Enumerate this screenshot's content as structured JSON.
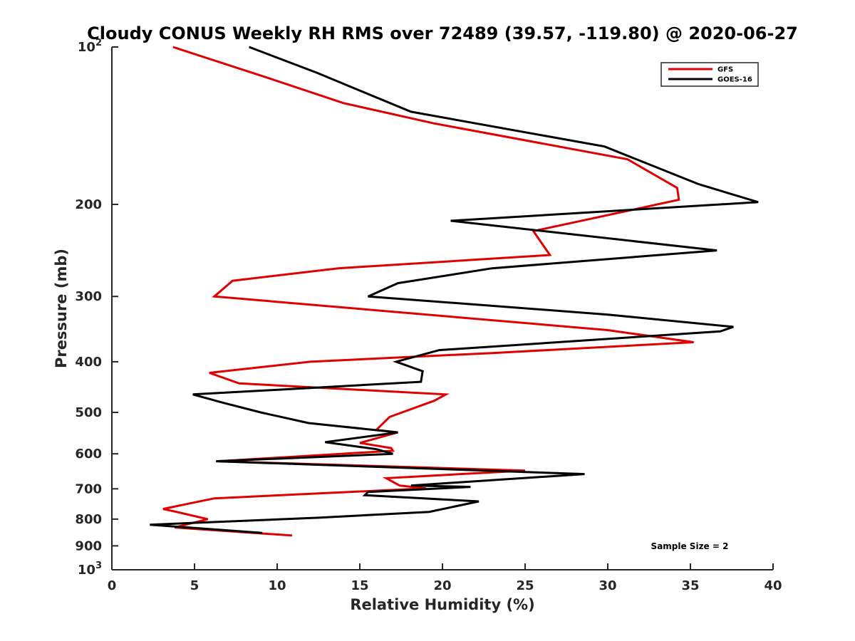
{
  "chart_data": {
    "type": "line",
    "title": "Cloudy CONUS Weekly RH RMS over 72489 (39.57, -119.80) @ 2020-06-27",
    "xlabel": "Relative Humidity (%)",
    "ylabel": "Pressure (mb)",
    "xlim": [
      0,
      40
    ],
    "ylim": [
      100,
      1000
    ],
    "yscale": "log",
    "y_reversed": true,
    "grid": false,
    "legend_position": "top-right",
    "x_ticks": [
      0,
      5,
      10,
      15,
      20,
      25,
      30,
      35,
      40
    ],
    "x_tick_labels": [
      "0",
      "5",
      "10",
      "15",
      "20",
      "25",
      "30",
      "35",
      "40"
    ],
    "y_ticks": [
      200,
      300,
      400,
      500,
      600,
      700,
      800,
      900
    ],
    "y_tick_labels": [
      "200",
      "300",
      "400",
      "500",
      "600",
      "700",
      "800",
      "900"
    ],
    "y_top_label": {
      "base": "10",
      "exp": "2"
    },
    "y_bottom_label": {
      "base": "10",
      "exp": "3"
    },
    "annotation": "Sample Size = 2",
    "series": [
      {
        "name": "GFS",
        "color": "#e00000",
        "points": [
          [
            3.7,
            100
          ],
          [
            9.6,
            115
          ],
          [
            14,
            128
          ],
          [
            19.5,
            140
          ],
          [
            31.2,
            164
          ],
          [
            34.2,
            186
          ],
          [
            34.3,
            196
          ],
          [
            25.5,
            225
          ],
          [
            26.5,
            250
          ],
          [
            13.7,
            265
          ],
          [
            7.3,
            280
          ],
          [
            6.2,
            300
          ],
          [
            30,
            348
          ],
          [
            35.2,
            367
          ],
          [
            23,
            385
          ],
          [
            12,
            400
          ],
          [
            5.9,
            420
          ],
          [
            7.7,
            440
          ],
          [
            20.2,
            462
          ],
          [
            19.5,
            475
          ],
          [
            16.8,
            510
          ],
          [
            16,
            540
          ],
          [
            17.3,
            546
          ],
          [
            15,
            572
          ],
          [
            16.9,
            585
          ],
          [
            17,
            592
          ],
          [
            6.4,
            620
          ],
          [
            25,
            646
          ],
          [
            16.6,
            668
          ],
          [
            17.4,
            690
          ],
          [
            19.0,
            699
          ],
          [
            16,
            706
          ],
          [
            6.2,
            730
          ],
          [
            3.1,
            765
          ],
          [
            4,
            776
          ],
          [
            5.8,
            800
          ],
          [
            3.8,
            830
          ],
          [
            10.9,
            860
          ]
        ]
      },
      {
        "name": "GOES-16",
        "color": "#000000",
        "points": [
          [
            8.3,
            100
          ],
          [
            12.4,
            112
          ],
          [
            15.5,
            123
          ],
          [
            18.1,
            133
          ],
          [
            29.8,
            155
          ],
          [
            35.5,
            183
          ],
          [
            39.1,
            198
          ],
          [
            20.5,
            215
          ],
          [
            36.6,
            245
          ],
          [
            23,
            265
          ],
          [
            17.3,
            283
          ],
          [
            15.5,
            300
          ],
          [
            30,
            325
          ],
          [
            37.6,
            343
          ],
          [
            36.8,
            350
          ],
          [
            19.8,
            380
          ],
          [
            17.2,
            400
          ],
          [
            18.8,
            417
          ],
          [
            18.7,
            437
          ],
          [
            4.9,
            462
          ],
          [
            6.6,
            478
          ],
          [
            9,
            500
          ],
          [
            11.9,
            524
          ],
          [
            17.3,
            546
          ],
          [
            12.9,
            570
          ],
          [
            16,
            588
          ],
          [
            17,
            600
          ],
          [
            6.3,
            620
          ],
          [
            28.6,
            656
          ],
          [
            18.1,
            690
          ],
          [
            21.7,
            694
          ],
          [
            15.5,
            710
          ],
          [
            15.3,
            720
          ],
          [
            22.2,
            740
          ],
          [
            19.2,
            775
          ],
          [
            12.5,
            795
          ],
          [
            2.3,
            820
          ],
          [
            9.1,
            850
          ]
        ]
      }
    ]
  }
}
